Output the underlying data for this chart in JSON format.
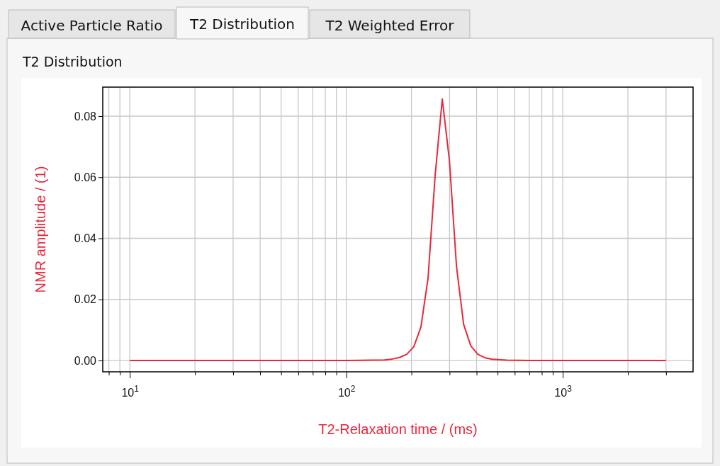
{
  "chart_data": {
    "type": "line",
    "title": "T2 Distribution",
    "xlabel": "T2-Relaxation time / (ms)",
    "ylabel": "NMR amplitude / (1)",
    "annotations": [
      "Active Particle Ratio",
      "T2 Distribution",
      "T2 Weighted Error"
    ],
    "log": "x",
    "grid": true,
    "marker": "none",
    "line_style": "solid",
    "xlim": [
      7.5,
      4000
    ],
    "xticks": [
      {
        "value": 8,
        "label": null
      },
      {
        "value": 9,
        "label": null
      },
      {
        "value": 10,
        "label": "10$^{1}$"
      },
      {
        "value": 20,
        "label": null
      },
      {
        "value": 30,
        "label": null
      },
      {
        "value": 40,
        "label": null
      },
      {
        "value": 50,
        "label": null
      },
      {
        "value": 60,
        "label": null
      },
      {
        "value": 70,
        "label": null
      },
      {
        "value": 80,
        "label": null
      },
      {
        "value": 90,
        "label": null
      },
      {
        "value": 100,
        "label": "10$^{2}$"
      },
      {
        "value": 200,
        "label": null
      },
      {
        "value": 300,
        "label": null
      },
      {
        "value": 400,
        "label": null
      },
      {
        "value": 500,
        "label": null
      },
      {
        "value": 600,
        "label": null
      },
      {
        "value": 700,
        "label": null
      },
      {
        "value": 800,
        "label": null
      },
      {
        "value": 900,
        "label": null
      },
      {
        "value": 1000,
        "label": "10$^{3}$"
      },
      {
        "value": 2000,
        "label": null
      },
      {
        "value": 3000,
        "label": null
      }
    ],
    "ylim": [
      -0.0037,
      0.0895
    ],
    "yticks": [
      {
        "value": 0,
        "label": "0.00"
      },
      {
        "value": 0.02,
        "label": "0.02"
      },
      {
        "value": 0.04,
        "label": "0.04"
      },
      {
        "value": 0.06,
        "label": "0.06"
      },
      {
        "value": 0.08,
        "label": "0.08"
      }
    ],
    "series": [
      {
        "color": "#e8283c",
        "x": [
          10,
          100,
          150,
          163.5,
          176.2,
          190.1,
          205.1,
          221.3,
          238.7,
          257.5,
          277.7,
          299.6,
          323.1,
          348.5,
          376,
          405.6,
          437.5,
          472,
          550,
          700,
          3000
        ],
        "values": [
          0,
          0,
          0.0002,
          0.0005,
          0.001,
          0.002,
          0.0045,
          0.011,
          0.027,
          0.0608,
          0.0856,
          0.0655,
          0.0307,
          0.0118,
          0.0048,
          0.002,
          0.0009,
          0.0004,
          0.0001,
          0,
          0
        ]
      }
    ]
  }
}
